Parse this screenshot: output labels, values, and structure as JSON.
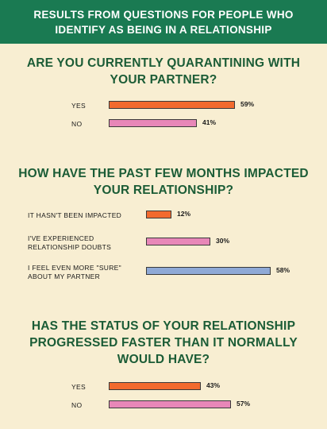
{
  "header": {
    "title": "RESULTS FROM QUESTIONS FOR PEOPLE WHO IDENTIFY AS BEING IN A RELATIONSHIP"
  },
  "colors": {
    "header_bg": "#1a7a52",
    "title_text": "#1b5c36",
    "background": "#f8eed2",
    "orange": "#f26a2e",
    "pink": "#e887b8",
    "blue": "#8fa9d6"
  },
  "chart_data": [
    {
      "type": "bar",
      "orientation": "horizontal",
      "title": "ARE YOU CURRENTLY QUARANTINING WITH YOUR PARTNER?",
      "categories": [
        "YES",
        "NO"
      ],
      "values": [
        59,
        41
      ],
      "value_labels": [
        "59%",
        "41%"
      ],
      "bar_colors": [
        "#f26a2e",
        "#e887b8"
      ],
      "unit": "%",
      "xlim": [
        0,
        100
      ]
    },
    {
      "type": "bar",
      "orientation": "horizontal",
      "title": "HOW HAVE THE PAST FEW MONTHS IMPACTED YOUR RELATIONSHIP?",
      "categories": [
        "IT HASN'T BEEN IMPACTED",
        "I'VE EXPERIENCED RELATIONSHIP DOUBTS",
        "I FEEL EVEN MORE \"SURE\" ABOUT MY PARTNER"
      ],
      "category_lines": [
        [
          "IT HASN'T BEEN IMPACTED"
        ],
        [
          "I'VE EXPERIENCED",
          "RELATIONSHIP DOUBTS"
        ],
        [
          "I FEEL EVEN MORE \"SURE\"",
          "ABOUT MY PARTNER"
        ]
      ],
      "values": [
        12,
        30,
        58
      ],
      "value_labels": [
        "12%",
        "30%",
        "58%"
      ],
      "bar_colors": [
        "#f26a2e",
        "#e887b8",
        "#8fa9d6"
      ],
      "unit": "%",
      "xlim": [
        0,
        100
      ]
    },
    {
      "type": "bar",
      "orientation": "horizontal",
      "title": "HAS THE STATUS OF YOUR RELATIONSHIP PROGRESSED FASTER THAN IT NORMALLY WOULD HAVE?",
      "categories": [
        "YES",
        "NO"
      ],
      "values": [
        43,
        57
      ],
      "value_labels": [
        "43%",
        "57%"
      ],
      "bar_colors": [
        "#f26a2e",
        "#e887b8"
      ],
      "unit": "%",
      "xlim": [
        0,
        100
      ]
    }
  ]
}
